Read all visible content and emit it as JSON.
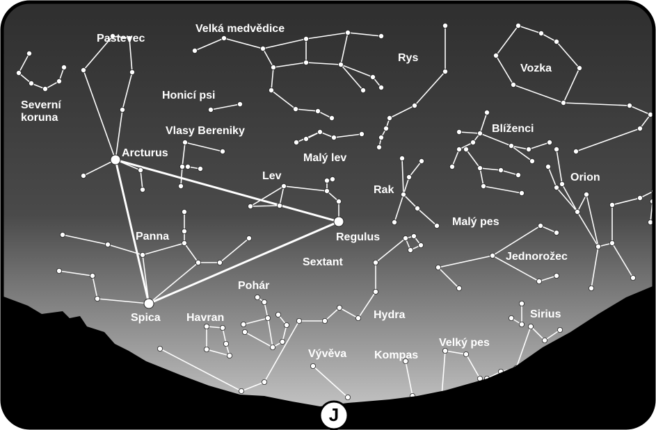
{
  "labels": [
    "Velká medvědice",
    "Pastevec",
    "Rys",
    "Vozka",
    "Severní",
    "koruna",
    "Honicí psi",
    "Vlasy Bereniky",
    "Arcturus",
    "Malý lev",
    "Blíženci",
    "Lev",
    "Rak",
    "Orion",
    "Regulus",
    "Malý pes",
    "Panna",
    "Jednorožec",
    "Sextant",
    "Pohár",
    "Hydra",
    "Sirius",
    "Spica",
    "Havran",
    "Velký pes",
    "Vývěva",
    "Kompas"
  ],
  "compass": "J"
}
